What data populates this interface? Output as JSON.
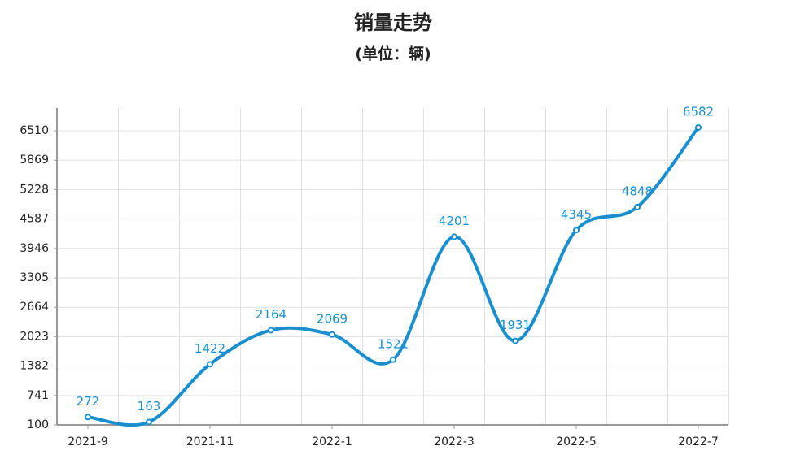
{
  "chart_data": {
    "type": "line",
    "title": "销量走势",
    "subtitle": "(单位：辆)",
    "categories": [
      "2021-9",
      null,
      "2021-11",
      null,
      "2022-1",
      null,
      "2022-3",
      null,
      "2022-5",
      null,
      "2022-7"
    ],
    "series": [
      {
        "name": "销量",
        "color": "#1a8fd0",
        "values": [
          272,
          163,
          1422,
          2164,
          2069,
          1521,
          4201,
          1931,
          4345,
          4848,
          6582
        ]
      }
    ],
    "ylim": [
      100,
      7006
    ],
    "yticks": [
      100,
      741,
      1382,
      2023,
      2664,
      3305,
      3946,
      4587,
      5228,
      5869,
      6510
    ],
    "grid": true
  }
}
